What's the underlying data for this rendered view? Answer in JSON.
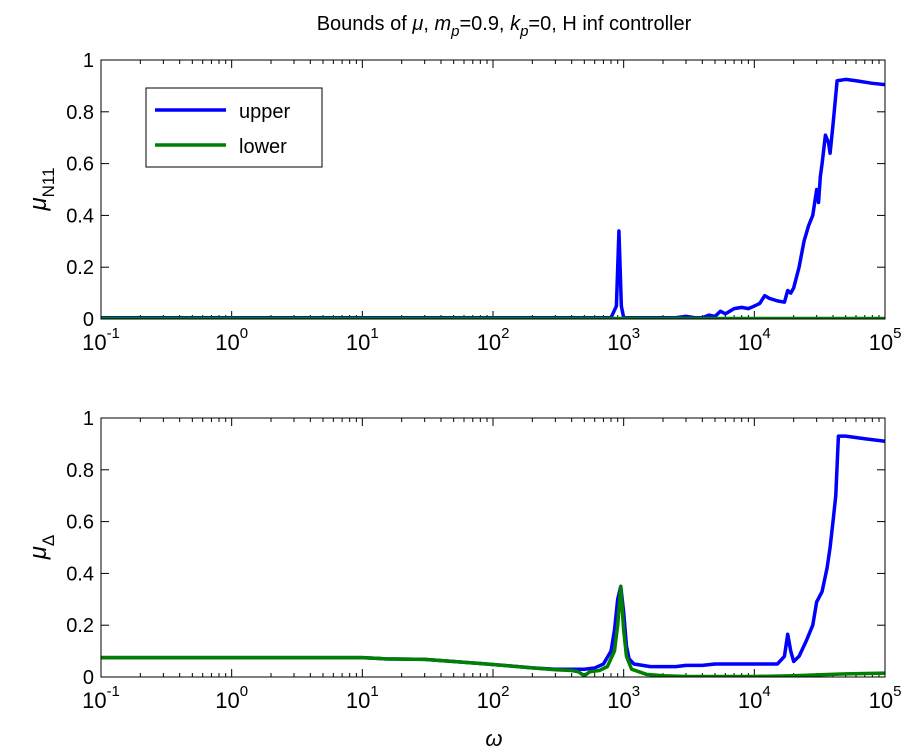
{
  "title": {
    "prefix": "Bounds of ",
    "mu": "μ",
    "sep1": ", ",
    "m": "m",
    "m_sub": "p",
    "m_val": "=0.9, ",
    "k": "k",
    "k_sub": "p",
    "k_val": "=0, ",
    "suffix": "H inf controller"
  },
  "xaxis_label": "ω",
  "chart_data": [
    {
      "type": "line",
      "xscale": "log",
      "xlim": [
        0.1,
        100000
      ],
      "ylim": [
        0,
        1
      ],
      "ylabel": {
        "symbol": "μ",
        "subscript": "N11"
      },
      "x_ticks": [
        {
          "value": 0.1,
          "base": "10",
          "exp": "-1"
        },
        {
          "value": 1,
          "base": "10",
          "exp": "0"
        },
        {
          "value": 10,
          "base": "10",
          "exp": "1"
        },
        {
          "value": 100,
          "base": "10",
          "exp": "2"
        },
        {
          "value": 1000,
          "base": "10",
          "exp": "3"
        },
        {
          "value": 10000,
          "base": "10",
          "exp": "4"
        },
        {
          "value": 100000,
          "base": "10",
          "exp": "5"
        }
      ],
      "y_ticks": [
        {
          "value": 0,
          "label": "0"
        },
        {
          "value": 0.2,
          "label": "0.2"
        },
        {
          "value": 0.4,
          "label": "0.4"
        },
        {
          "value": 0.6,
          "label": "0.6"
        },
        {
          "value": 0.8,
          "label": "0.8"
        },
        {
          "value": 1,
          "label": "1"
        }
      ],
      "grid": false,
      "legend": {
        "placement": "top-left",
        "entries": [
          "upper",
          "lower"
        ]
      },
      "series": [
        {
          "name": "upper",
          "color": "#0000ff",
          "points": [
            [
              0.1,
              0.005
            ],
            [
              800,
              0.005
            ],
            [
              880,
              0.05
            ],
            [
              920,
              0.34
            ],
            [
              960,
              0.05
            ],
            [
              1000,
              0.005
            ],
            [
              2500,
              0.005
            ],
            [
              3000,
              0.01
            ],
            [
              3500,
              0.005
            ],
            [
              4000,
              0.005
            ],
            [
              4500,
              0.015
            ],
            [
              5000,
              0.01
            ],
            [
              5500,
              0.03
            ],
            [
              6000,
              0.02
            ],
            [
              7000,
              0.04
            ],
            [
              8000,
              0.045
            ],
            [
              9000,
              0.04
            ],
            [
              10000,
              0.05
            ],
            [
              11000,
              0.06
            ],
            [
              12000,
              0.09
            ],
            [
              13000,
              0.08
            ],
            [
              15000,
              0.07
            ],
            [
              17000,
              0.065
            ],
            [
              18000,
              0.11
            ],
            [
              19000,
              0.1
            ],
            [
              20000,
              0.12
            ],
            [
              22000,
              0.2
            ],
            [
              24000,
              0.3
            ],
            [
              26000,
              0.36
            ],
            [
              28000,
              0.4
            ],
            [
              30000,
              0.5
            ],
            [
              31000,
              0.45
            ],
            [
              32000,
              0.55
            ],
            [
              33000,
              0.6
            ],
            [
              35000,
              0.71
            ],
            [
              37000,
              0.68
            ],
            [
              38000,
              0.64
            ],
            [
              40000,
              0.75
            ],
            [
              43000,
              0.92
            ],
            [
              50000,
              0.925
            ],
            [
              60000,
              0.92
            ],
            [
              80000,
              0.91
            ],
            [
              100000,
              0.905
            ]
          ]
        },
        {
          "name": "lower",
          "color": "#007f00",
          "points": [
            [
              0.1,
              0.002
            ],
            [
              100000,
              0.002
            ]
          ]
        }
      ]
    },
    {
      "type": "line",
      "xscale": "log",
      "xlim": [
        0.1,
        100000
      ],
      "ylim": [
        0,
        1
      ],
      "ylabel": {
        "symbol": "μ",
        "subscript": "Δ"
      },
      "x_ticks": [
        {
          "value": 0.1,
          "base": "10",
          "exp": "-1"
        },
        {
          "value": 1,
          "base": "10",
          "exp": "0"
        },
        {
          "value": 10,
          "base": "10",
          "exp": "1"
        },
        {
          "value": 100,
          "base": "10",
          "exp": "2"
        },
        {
          "value": 1000,
          "base": "10",
          "exp": "3"
        },
        {
          "value": 10000,
          "base": "10",
          "exp": "4"
        },
        {
          "value": 100000,
          "base": "10",
          "exp": "5"
        }
      ],
      "y_ticks": [
        {
          "value": 0,
          "label": "0"
        },
        {
          "value": 0.2,
          "label": "0.2"
        },
        {
          "value": 0.4,
          "label": "0.4"
        },
        {
          "value": 0.6,
          "label": "0.6"
        },
        {
          "value": 0.8,
          "label": "0.8"
        },
        {
          "value": 1,
          "label": "1"
        }
      ],
      "grid": false,
      "series": [
        {
          "name": "upper",
          "color": "#0000ff",
          "points": [
            [
              0.1,
              0.075
            ],
            [
              10,
              0.075
            ],
            [
              15,
              0.07
            ],
            [
              30,
              0.068
            ],
            [
              50,
              0.06
            ],
            [
              80,
              0.052
            ],
            [
              120,
              0.045
            ],
            [
              200,
              0.035
            ],
            [
              300,
              0.03
            ],
            [
              400,
              0.03
            ],
            [
              500,
              0.03
            ],
            [
              600,
              0.035
            ],
            [
              700,
              0.05
            ],
            [
              800,
              0.1
            ],
            [
              850,
              0.18
            ],
            [
              900,
              0.3
            ],
            [
              950,
              0.35
            ],
            [
              1000,
              0.25
            ],
            [
              1050,
              0.12
            ],
            [
              1100,
              0.07
            ],
            [
              1200,
              0.05
            ],
            [
              1400,
              0.045
            ],
            [
              1600,
              0.04
            ],
            [
              2000,
              0.04
            ],
            [
              2500,
              0.04
            ],
            [
              3000,
              0.045
            ],
            [
              4000,
              0.045
            ],
            [
              5000,
              0.05
            ],
            [
              8000,
              0.05
            ],
            [
              10000,
              0.05
            ],
            [
              15000,
              0.05
            ],
            [
              17000,
              0.08
            ],
            [
              18000,
              0.165
            ],
            [
              19000,
              0.1
            ],
            [
              20000,
              0.06
            ],
            [
              22000,
              0.08
            ],
            [
              25000,
              0.14
            ],
            [
              28000,
              0.2
            ],
            [
              30000,
              0.29
            ],
            [
              33000,
              0.33
            ],
            [
              36000,
              0.42
            ],
            [
              38000,
              0.5
            ],
            [
              40000,
              0.6
            ],
            [
              42000,
              0.7
            ],
            [
              44000,
              0.93
            ],
            [
              50000,
              0.93
            ],
            [
              70000,
              0.92
            ],
            [
              100000,
              0.91
            ]
          ]
        },
        {
          "name": "lower",
          "color": "#007f00",
          "points": [
            [
              0.1,
              0.075
            ],
            [
              10,
              0.075
            ],
            [
              15,
              0.07
            ],
            [
              30,
              0.068
            ],
            [
              50,
              0.06
            ],
            [
              80,
              0.052
            ],
            [
              120,
              0.045
            ],
            [
              200,
              0.035
            ],
            [
              300,
              0.028
            ],
            [
              400,
              0.025
            ],
            [
              450,
              0.02
            ],
            [
              500,
              0.005
            ],
            [
              550,
              0.02
            ],
            [
              650,
              0.025
            ],
            [
              750,
              0.04
            ],
            [
              850,
              0.1
            ],
            [
              900,
              0.2
            ],
            [
              950,
              0.35
            ],
            [
              1000,
              0.18
            ],
            [
              1050,
              0.08
            ],
            [
              1150,
              0.03
            ],
            [
              1500,
              0.01
            ],
            [
              2000,
              0.005
            ],
            [
              3000,
              0.002
            ],
            [
              10000,
              0.002
            ],
            [
              20000,
              0.005
            ],
            [
              30000,
              0.008
            ],
            [
              50000,
              0.012
            ],
            [
              100000,
              0.015
            ]
          ]
        }
      ]
    }
  ]
}
